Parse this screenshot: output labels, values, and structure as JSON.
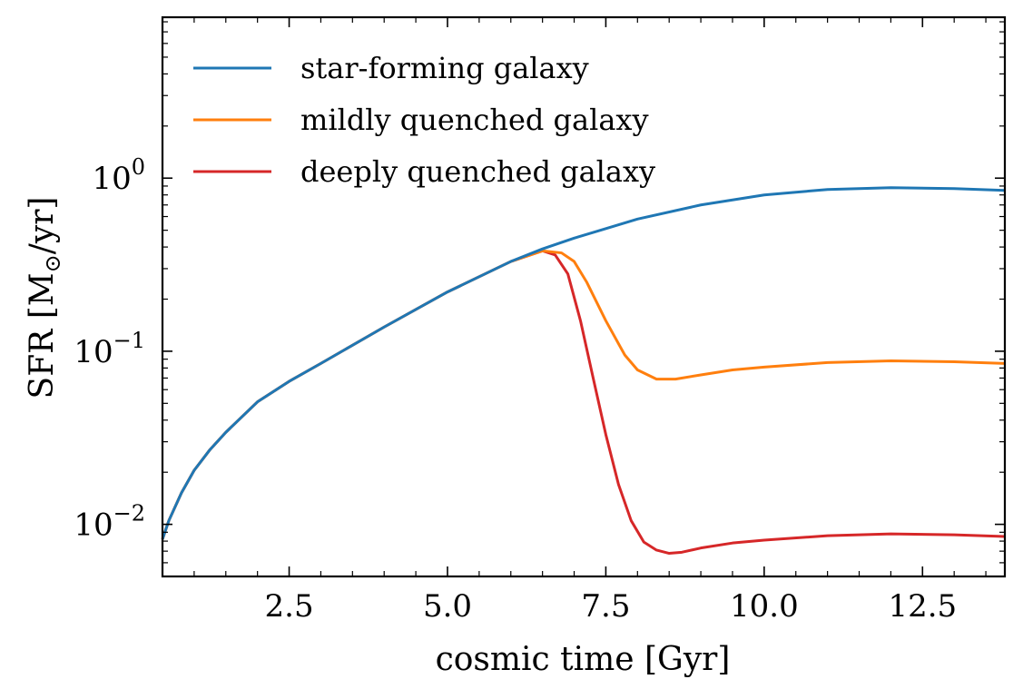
{
  "chart_data": {
    "type": "line",
    "xlabel": "cosmic time [Gyr]",
    "ylabel_prefix": "SFR [M",
    "ylabel_sub": "⊙",
    "ylabel_suffix": "/yr]",
    "xlim": [
      0.5,
      13.8
    ],
    "ylim": [
      0.005,
      8.5
    ],
    "yscale": "log",
    "grid": false,
    "legend_position": "top-left",
    "x_ticks": [
      {
        "value": 2.5,
        "label": "2.5"
      },
      {
        "value": 5.0,
        "label": "5.0"
      },
      {
        "value": 7.5,
        "label": "7.5"
      },
      {
        "value": 10.0,
        "label": "10.0"
      },
      {
        "value": 12.5,
        "label": "12.5"
      }
    ],
    "y_ticks": [
      {
        "value": 0.01,
        "base": "10",
        "exp": "−2"
      },
      {
        "value": 0.1,
        "base": "10",
        "exp": "−1"
      },
      {
        "value": 1,
        "base": "10",
        "exp": "0"
      }
    ],
    "series": [
      {
        "name": "star-forming galaxy",
        "color": "#1f77b4",
        "x": [
          0.5,
          0.6,
          0.8,
          1.0,
          1.25,
          1.5,
          2.0,
          2.5,
          3.0,
          4.0,
          5.0,
          6.0,
          6.5,
          7.0,
          8.0,
          9.0,
          10.0,
          11.0,
          12.0,
          13.0,
          13.8
        ],
        "y": [
          0.0082,
          0.0105,
          0.0152,
          0.0205,
          0.027,
          0.034,
          0.051,
          0.067,
          0.085,
          0.138,
          0.22,
          0.33,
          0.39,
          0.45,
          0.58,
          0.7,
          0.8,
          0.86,
          0.88,
          0.87,
          0.85
        ]
      },
      {
        "name": "mildly quenched galaxy",
        "color": "#ff7f0e",
        "x": [
          0.5,
          0.6,
          0.8,
          1.0,
          1.25,
          1.5,
          2.0,
          2.5,
          3.0,
          4.0,
          5.0,
          6.0,
          6.5,
          6.8,
          7.0,
          7.2,
          7.5,
          7.8,
          8.0,
          8.3,
          8.6,
          9.0,
          9.5,
          10.0,
          11.0,
          12.0,
          13.0,
          13.8
        ],
        "y": [
          0.0082,
          0.0105,
          0.0152,
          0.0205,
          0.027,
          0.034,
          0.051,
          0.067,
          0.085,
          0.138,
          0.22,
          0.33,
          0.38,
          0.37,
          0.33,
          0.25,
          0.15,
          0.095,
          0.078,
          0.069,
          0.069,
          0.073,
          0.078,
          0.081,
          0.086,
          0.088,
          0.087,
          0.085
        ]
      },
      {
        "name": "deeply quenched galaxy",
        "color": "#d62728",
        "x": [
          0.5,
          0.6,
          0.8,
          1.0,
          1.25,
          1.5,
          2.0,
          2.5,
          3.0,
          4.0,
          5.0,
          6.0,
          6.5,
          6.7,
          6.9,
          7.1,
          7.3,
          7.5,
          7.7,
          7.9,
          8.1,
          8.3,
          8.5,
          8.7,
          9.0,
          9.5,
          10.0,
          11.0,
          12.0,
          13.0,
          13.8
        ],
        "y": [
          0.0082,
          0.0105,
          0.0152,
          0.0205,
          0.027,
          0.034,
          0.051,
          0.067,
          0.085,
          0.138,
          0.22,
          0.33,
          0.38,
          0.36,
          0.28,
          0.15,
          0.07,
          0.033,
          0.017,
          0.0105,
          0.0079,
          0.0071,
          0.0068,
          0.0069,
          0.0073,
          0.0078,
          0.0081,
          0.0086,
          0.0088,
          0.0087,
          0.0085
        ]
      }
    ]
  }
}
